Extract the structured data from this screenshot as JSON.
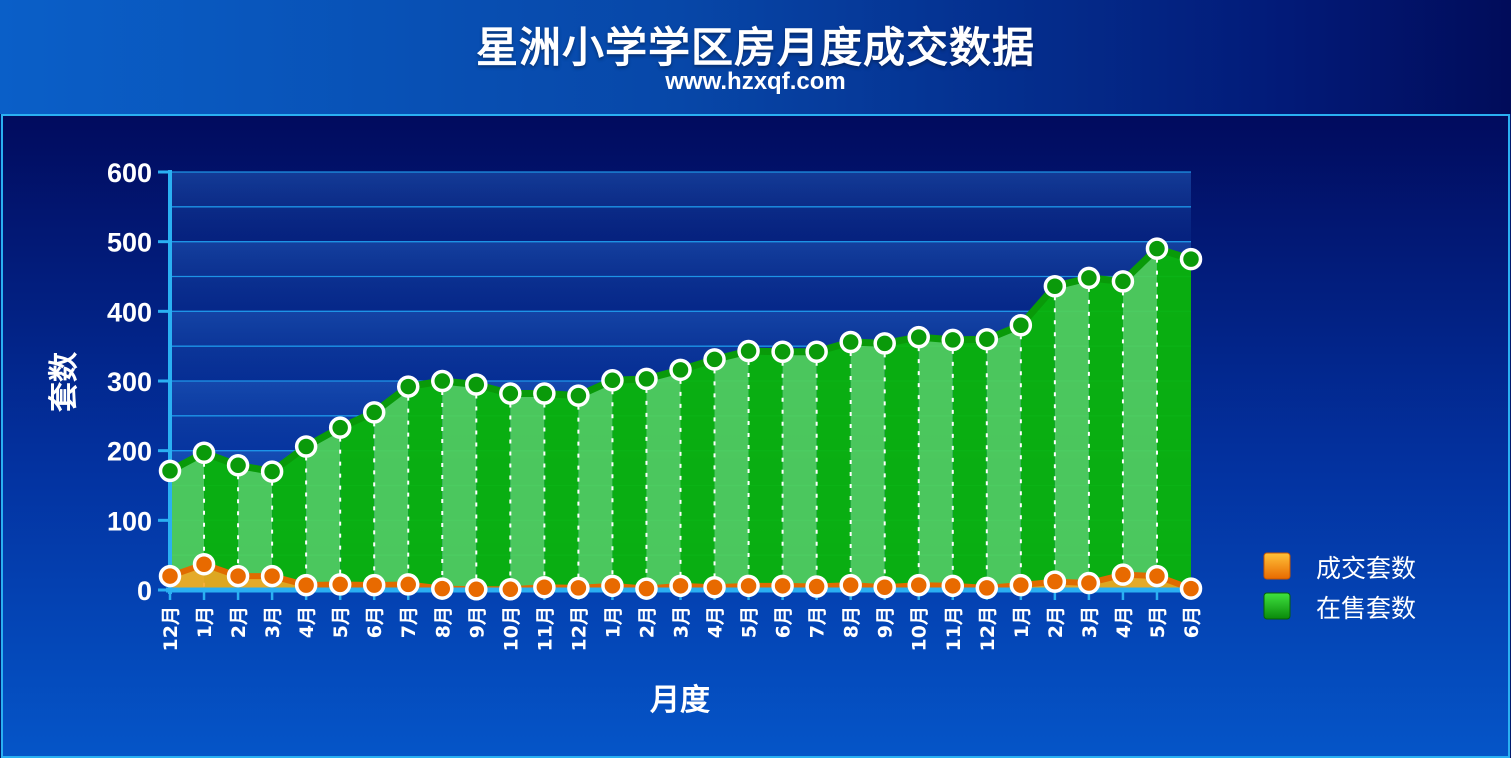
{
  "header": {
    "title": "星洲小学学区房月度成交数据",
    "subtitle": "www.hzxqf.com"
  },
  "colors": {
    "deal_series": "#f07d0a",
    "listing_series": "#1dbf1d",
    "axis": "#2ab0f2",
    "text": "#ffffff"
  },
  "chart_data": {
    "type": "area",
    "title": "星洲小学学区房月度成交数据",
    "xlabel": "月度",
    "ylabel": "套数",
    "ylim": [
      0,
      600
    ],
    "yticks": [
      0,
      100,
      200,
      300,
      400,
      500,
      600
    ],
    "grid": true,
    "legend_position": "right",
    "categories": [
      "12月",
      "1月",
      "2月",
      "3月",
      "4月",
      "5月",
      "6月",
      "7月",
      "8月",
      "9月",
      "10月",
      "11月",
      "12月",
      "1月",
      "2月",
      "3月",
      "4月",
      "5月",
      "6月",
      "7月",
      "8月",
      "9月",
      "10月",
      "11月",
      "12月",
      "1月",
      "2月",
      "3月",
      "4月",
      "5月",
      "6月"
    ],
    "series": [
      {
        "name": "成交套数",
        "values": [
          20,
          37,
          20,
          20,
          7,
          8,
          7,
          8,
          2,
          1,
          1,
          4,
          3,
          6,
          2,
          6,
          4,
          6,
          6,
          5,
          7,
          4,
          7,
          6,
          3,
          7,
          12,
          10,
          22,
          20,
          2
        ]
      },
      {
        "name": "在售套数",
        "values": [
          171,
          197,
          179,
          170,
          206,
          233,
          255,
          292,
          300,
          295,
          282,
          282,
          279,
          301,
          303,
          316,
          331,
          343,
          342,
          342,
          356,
          354,
          363,
          359,
          360,
          380,
          436,
          448,
          443,
          490,
          475
        ]
      }
    ]
  }
}
